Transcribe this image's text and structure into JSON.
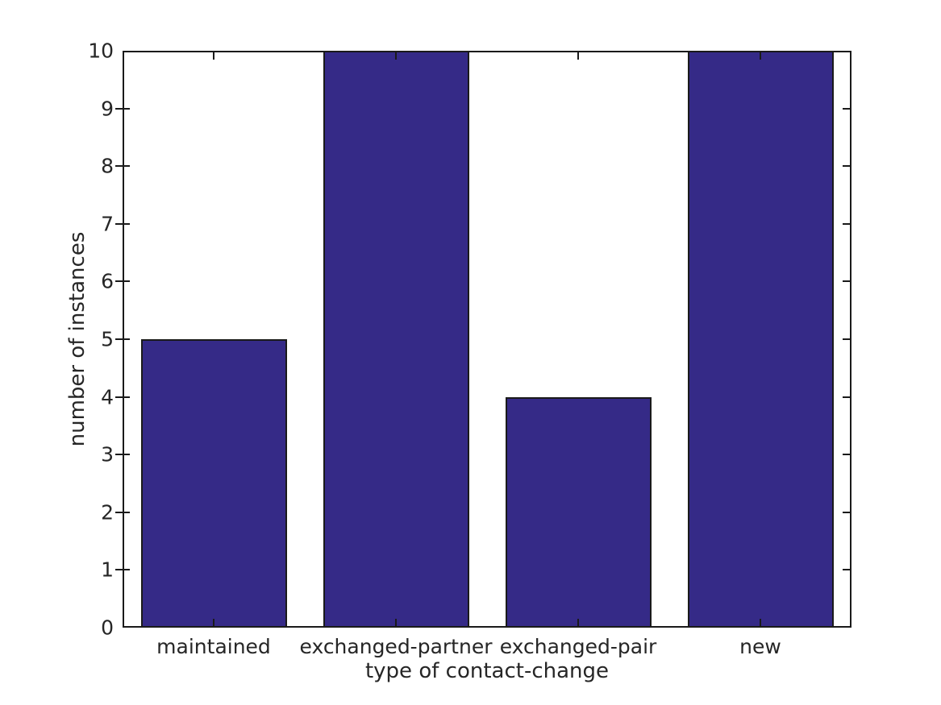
{
  "chart_data": {
    "type": "bar",
    "categories": [
      "maintained",
      "exchanged-partner",
      "exchanged-pair",
      "new"
    ],
    "values": [
      5,
      10,
      4,
      10
    ],
    "title": "",
    "xlabel": "type of contact-change",
    "ylabel": "number of instances",
    "ylim": [
      0,
      10
    ],
    "yticks": [
      0,
      1,
      2,
      3,
      4,
      5,
      6,
      7,
      8,
      9,
      10
    ],
    "grid": "off",
    "legend": "none",
    "bar_width_fraction": 0.8,
    "colors": {
      "bar_fill": "#352A87",
      "bar_edge": "#1A1A1A",
      "axis": "#1A1A1A",
      "text": "#262626",
      "background": "#FFFFFF"
    }
  }
}
